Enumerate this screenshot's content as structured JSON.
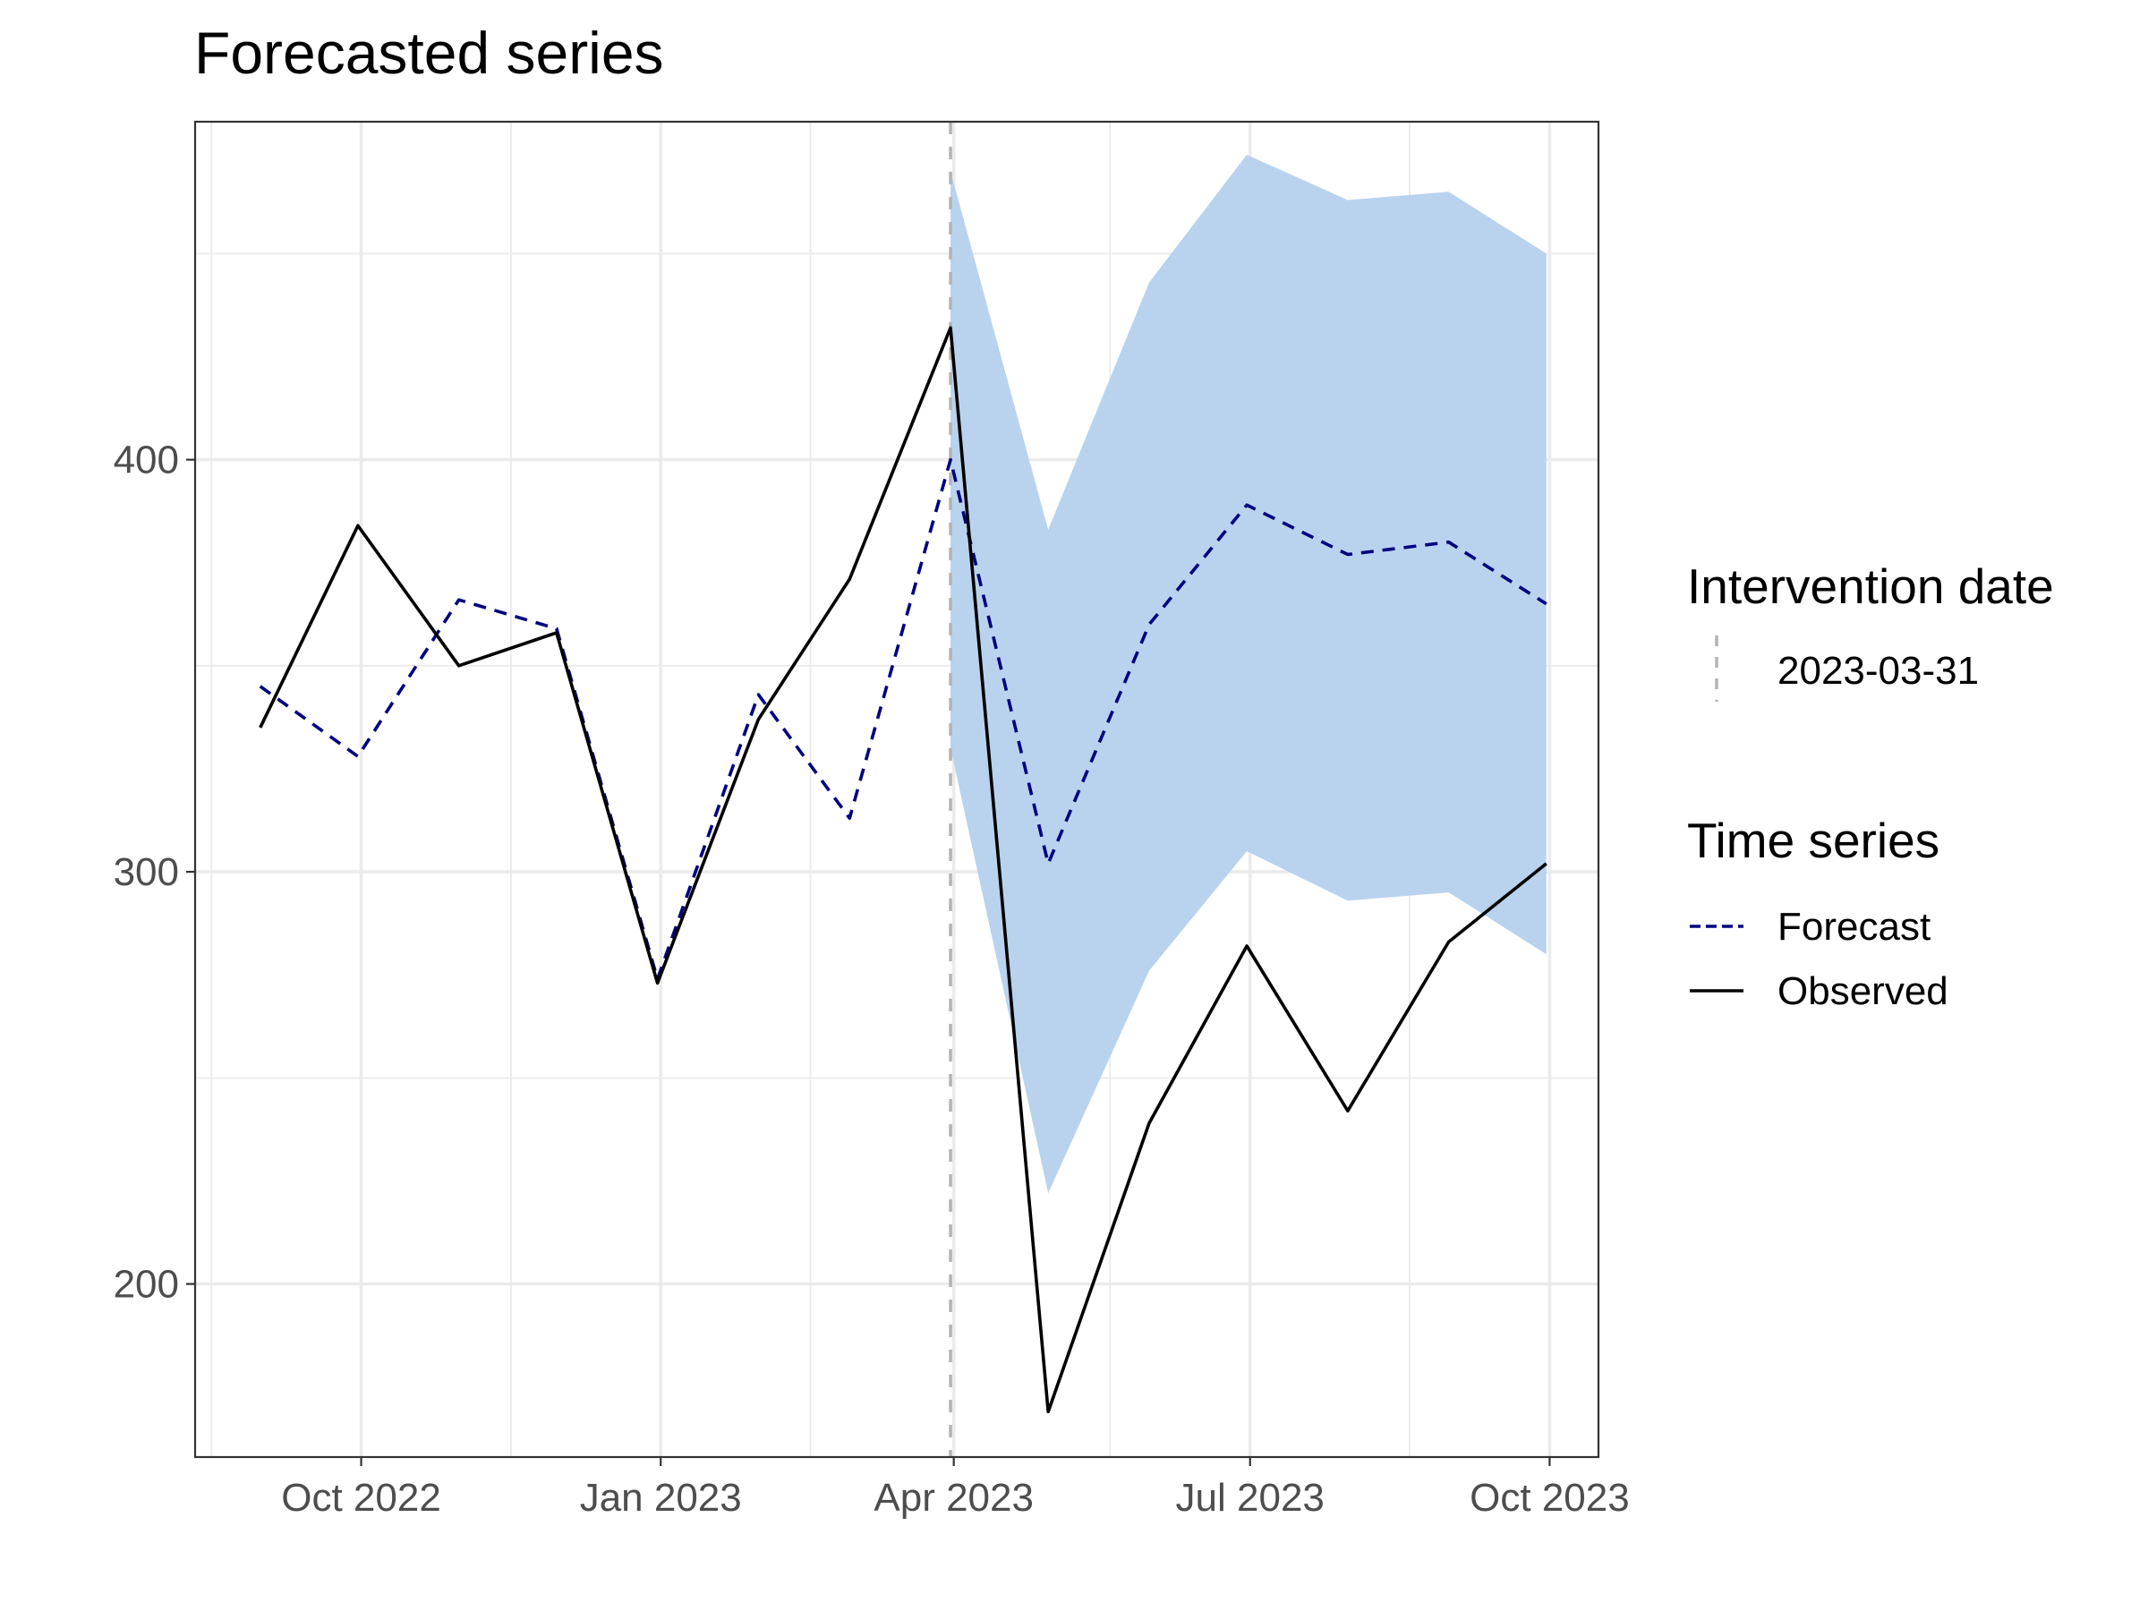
{
  "chart_data": {
    "type": "line",
    "title": "Forecasted series",
    "xlabel": "",
    "ylabel": "",
    "x": [
      "2022-08-31",
      "2022-09-30",
      "2022-10-31",
      "2022-11-30",
      "2022-12-31",
      "2023-01-31",
      "2023-02-28",
      "2023-03-31",
      "2023-04-30",
      "2023-05-31",
      "2023-06-30",
      "2023-07-31",
      "2023-08-31",
      "2023-09-30"
    ],
    "x_ticks": [
      "2022-10-01",
      "2023-01-01",
      "2023-04-01",
      "2023-07-01",
      "2023-10-01"
    ],
    "x_tick_labels": [
      "Oct 2022",
      "Jan 2023",
      "Apr 2023",
      "Jul 2023",
      "Oct 2023"
    ],
    "y_ticks": [
      200,
      300,
      400
    ],
    "y_tick_labels": [
      "200",
      "300",
      "400"
    ],
    "ylim": [
      158,
      482
    ],
    "xlim": [
      "2022-08-11",
      "2023-10-16"
    ],
    "grid": true,
    "series": [
      {
        "name": "Forecast",
        "color": "#000080",
        "dash": "dashed",
        "values": [
          345,
          328,
          366,
          359,
          274,
          343,
          313,
          400,
          302,
          360,
          389,
          377,
          380,
          365
        ]
      },
      {
        "name": "Observed",
        "color": "#000000",
        "dash": "solid",
        "values": [
          335,
          384,
          350,
          358,
          273,
          337,
          371,
          432,
          169,
          239,
          282,
          242,
          283,
          302
        ]
      }
    ],
    "ribbon": {
      "color": "#b9d3ee",
      "x": [
        "2023-03-31",
        "2023-04-30",
        "2023-05-31",
        "2023-06-30",
        "2023-07-31",
        "2023-08-31",
        "2023-09-30"
      ],
      "lower": [
        330,
        222,
        276,
        305,
        293,
        295,
        280
      ],
      "upper": [
        470,
        383,
        443,
        474,
        463,
        465,
        450
      ]
    },
    "intervention": {
      "date": "2023-03-31",
      "color": "#b3b3b3"
    },
    "legend": {
      "position": "right",
      "intervention_title": "Intervention date",
      "intervention_label": "2023-03-31",
      "series_title": "Time series",
      "series_labels": [
        "Forecast",
        "Observed"
      ]
    }
  }
}
